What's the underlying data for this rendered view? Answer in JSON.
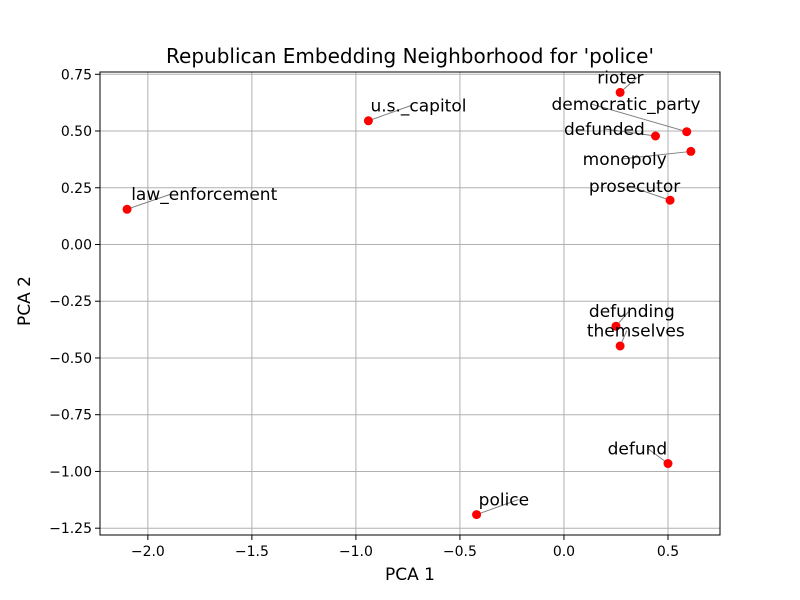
{
  "chart_data": {
    "type": "scatter",
    "title": "Republican Embedding Neighborhood for 'police'",
    "xlabel": "PCA 1",
    "ylabel": "PCA 2",
    "xlim": [
      -2.23,
      0.75
    ],
    "ylim": [
      -1.28,
      0.76
    ],
    "xticks": [
      -2.0,
      -1.5,
      -1.0,
      -0.5,
      0.0,
      0.5
    ],
    "xtick_labels": [
      "−2.0",
      "−1.5",
      "−1.0",
      "−0.5",
      "0.0",
      "0.5"
    ],
    "yticks": [
      0.75,
      0.5,
      0.25,
      0.0,
      -0.25,
      -0.5,
      -0.75,
      -1.0,
      -1.25
    ],
    "ytick_labels": [
      "0.75",
      "0.50",
      "0.25",
      "0.00",
      "−0.25",
      "−0.50",
      "−0.75",
      "−1.00",
      "−1.25"
    ],
    "grid": true,
    "point_color": "#ff0000",
    "points": [
      {
        "label": "rioter",
        "x": 0.27,
        "y": 0.67,
        "lx": 0.16,
        "ly": 0.71,
        "anchor": "start"
      },
      {
        "label": "u.s._capitol",
        "x": -0.94,
        "y": 0.545,
        "lx": -0.93,
        "ly": 0.585,
        "anchor": "start"
      },
      {
        "label": "democratic_party",
        "x": 0.59,
        "y": 0.497,
        "lx": -0.06,
        "ly": 0.592,
        "anchor": "start"
      },
      {
        "label": "defunded",
        "x": 0.44,
        "y": 0.478,
        "lx": 0.0,
        "ly": 0.483,
        "anchor": "start"
      },
      {
        "label": "monopoly",
        "x": 0.61,
        "y": 0.41,
        "lx": 0.09,
        "ly": 0.351,
        "anchor": "start"
      },
      {
        "label": "prosecutor",
        "x": 0.51,
        "y": 0.195,
        "lx": 0.12,
        "ly": 0.231,
        "anchor": "start"
      },
      {
        "label": "law_enforcement",
        "x": -2.1,
        "y": 0.155,
        "lx": -2.08,
        "ly": 0.196,
        "anchor": "start"
      },
      {
        "label": "defunding",
        "x": 0.25,
        "y": -0.36,
        "lx": 0.12,
        "ly": -0.32,
        "anchor": "start"
      },
      {
        "label": "themselves",
        "x": 0.27,
        "y": -0.447,
        "lx": 0.11,
        "ly": -0.406,
        "anchor": "start"
      },
      {
        "label": "defund",
        "x": 0.5,
        "y": -0.965,
        "lx": 0.21,
        "ly": -0.925,
        "anchor": "start"
      },
      {
        "label": "police",
        "x": -0.42,
        "y": -1.19,
        "lx": -0.41,
        "ly": -1.15,
        "anchor": "start"
      }
    ]
  }
}
